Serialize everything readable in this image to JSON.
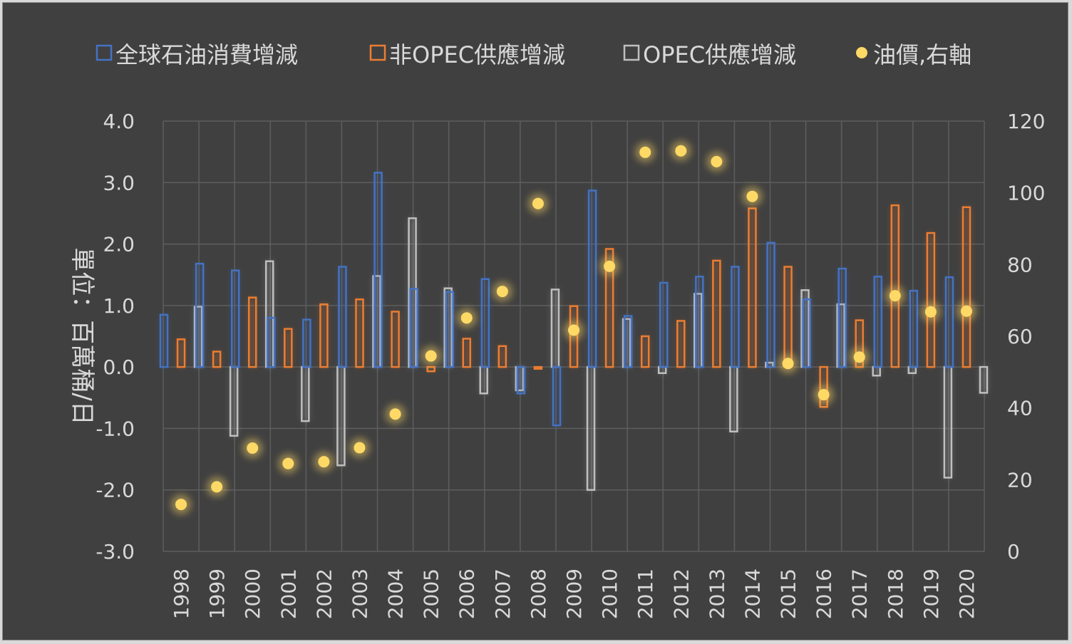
{
  "chart_data": {
    "type": "bar",
    "title": "",
    "ylabel": "單位：百萬桶/日",
    "ylim": [
      -3,
      4
    ],
    "y_ticks": [
      "4.0",
      "3.0",
      "2.0",
      "1.0",
      "0.0",
      "-1.0",
      "-2.0",
      "-3.0"
    ],
    "y2lim": [
      0,
      120
    ],
    "y2_ticks": [
      "120",
      "100",
      "80",
      "60",
      "40",
      "20",
      "0"
    ],
    "grid": true,
    "legend_position": "top",
    "categories": [
      "1998",
      "1999",
      "2000",
      "2001",
      "2002",
      "2003",
      "2004",
      "2005",
      "2006",
      "2007",
      "2008",
      "2009",
      "2010",
      "2011",
      "2012",
      "2013",
      "2014",
      "2015",
      "2016",
      "2017",
      "2018",
      "2019",
      "2020"
    ],
    "series": [
      {
        "name": "全球石油消費增減",
        "type": "bar",
        "axis": "left",
        "color": "#4472c4",
        "values": [
          0.85,
          1.68,
          1.57,
          0.8,
          0.77,
          1.63,
          3.16,
          1.27,
          1.22,
          1.43,
          -0.43,
          -0.95,
          2.87,
          0.83,
          1.37,
          1.47,
          1.63,
          2.02,
          1.1,
          1.6,
          1.47,
          1.24,
          1.46
        ]
      },
      {
        "name": "非OPEC供應增減",
        "type": "bar",
        "axis": "left",
        "color": "#ed7d31",
        "values": [
          0.45,
          0.25,
          1.13,
          0.62,
          1.02,
          1.1,
          0.9,
          -0.07,
          0.46,
          0.34,
          -0.03,
          0.99,
          1.92,
          0.5,
          0.75,
          1.73,
          2.58,
          1.63,
          -0.65,
          0.76,
          2.63,
          2.18,
          2.6
        ]
      },
      {
        "name": "OPEC供應增減",
        "type": "bar",
        "axis": "left",
        "color": "#bfbfbf",
        "values": [
          0.98,
          -1.12,
          1.72,
          -0.88,
          -1.6,
          1.48,
          2.42,
          1.28,
          -0.43,
          -0.38,
          1.26,
          -2.0,
          0.78,
          -0.1,
          1.19,
          -1.05,
          0.07,
          1.25,
          1.02,
          -0.14,
          -0.1,
          -1.8,
          -0.42
        ]
      },
      {
        "name": "油價,右軸",
        "type": "scatter",
        "axis": "right",
        "color": "#ffd966",
        "values": [
          13.1,
          18.0,
          28.8,
          24.5,
          25.0,
          28.9,
          38.3,
          54.5,
          65.1,
          72.5,
          97.0,
          61.7,
          79.5,
          111.3,
          111.7,
          108.7,
          99.0,
          52.4,
          43.7,
          54.2,
          71.3,
          66.8,
          67.0
        ]
      }
    ]
  }
}
